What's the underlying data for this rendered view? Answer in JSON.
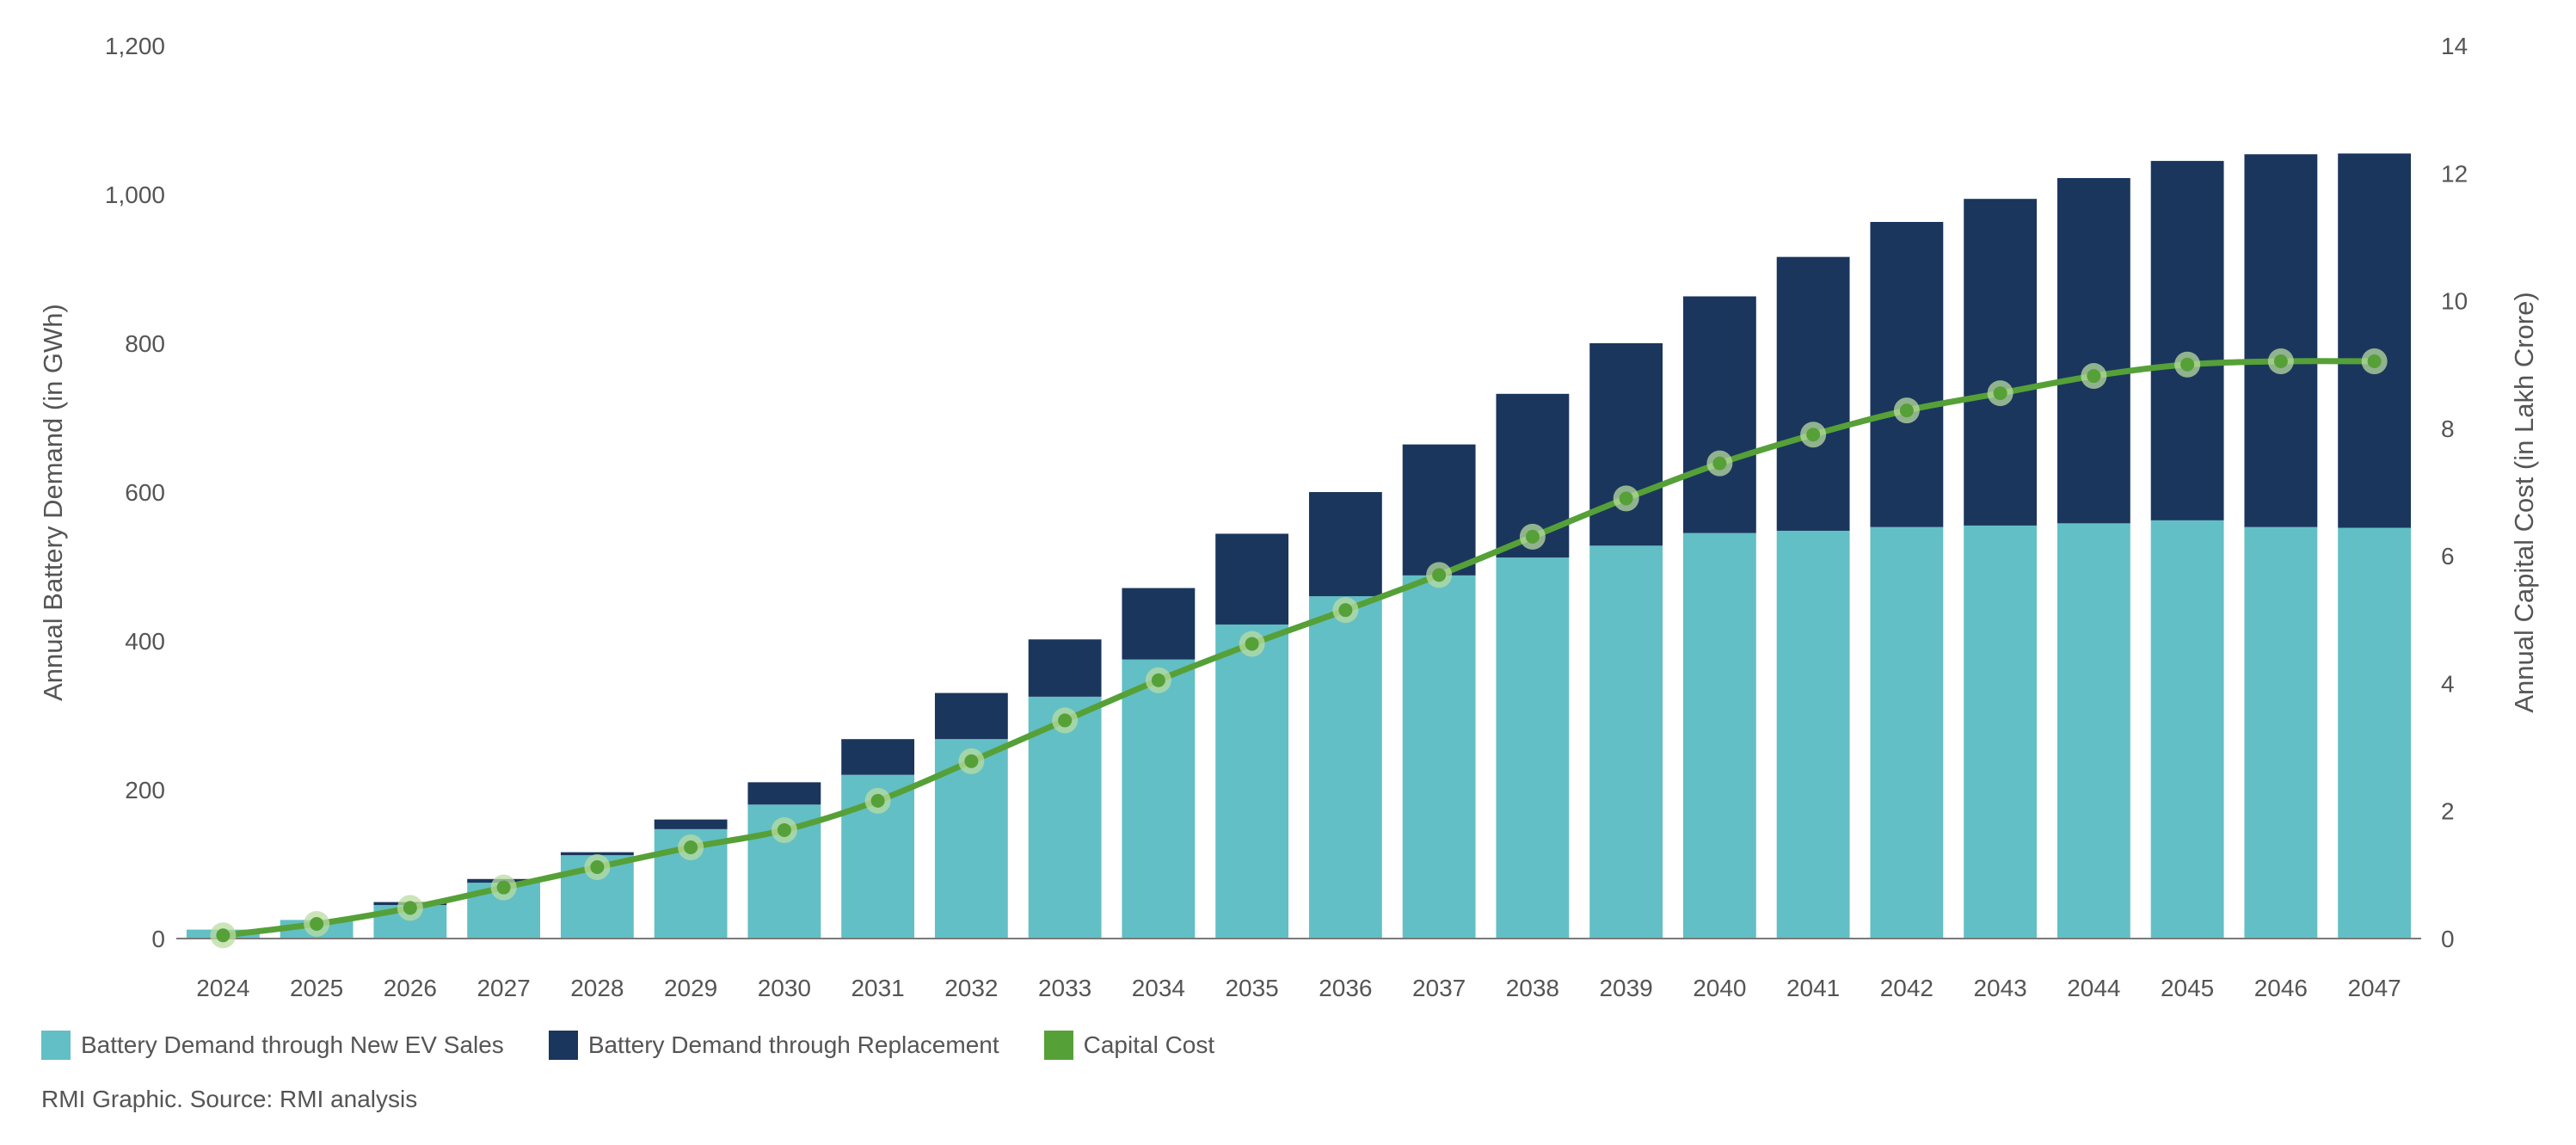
{
  "chart_data": {
    "type": "bar",
    "stacked": true,
    "categories": [
      "2024",
      "2025",
      "2026",
      "2027",
      "2028",
      "2029",
      "2030",
      "2031",
      "2032",
      "2033",
      "2034",
      "2035",
      "2036",
      "2037",
      "2038",
      "2039",
      "2040",
      "2041",
      "2042",
      "2043",
      "2044",
      "2045",
      "2046",
      "2047"
    ],
    "series": [
      {
        "name": "Battery Demand through New EV Sales",
        "color": "#62bfc5",
        "axis": "left",
        "values": [
          12,
          25,
          45,
          75,
          112,
          147,
          180,
          220,
          268,
          325,
          375,
          422,
          460,
          488,
          512,
          528,
          545,
          548,
          553,
          555,
          558,
          562,
          553,
          552
        ]
      },
      {
        "name": "Battery Demand through Replacement",
        "color": "#1b365d",
        "axis": "left",
        "values": [
          0,
          0,
          4,
          5,
          4,
          13,
          30,
          48,
          62,
          77,
          96,
          122,
          140,
          176,
          220,
          272,
          318,
          368,
          410,
          439,
          464,
          483,
          501,
          503
        ]
      },
      {
        "name": "Capital Cost",
        "type": "line",
        "color": "#56a038",
        "axis": "right",
        "values": [
          0.05,
          0.23,
          0.48,
          0.8,
          1.12,
          1.43,
          1.7,
          2.16,
          2.78,
          3.42,
          4.05,
          4.62,
          5.15,
          5.7,
          6.3,
          6.9,
          7.45,
          7.9,
          8.28,
          8.55,
          8.82,
          9.0,
          9.05,
          9.05
        ]
      }
    ],
    "y_left": {
      "label": "Annual Battery Demand (in GWh)",
      "lim": [
        0,
        1200
      ],
      "ticks": [
        "0",
        "200",
        "400",
        "600",
        "800",
        "1,000",
        "1,200"
      ]
    },
    "y_right": {
      "label": "Annual Capital Cost (in Lakh Crore)",
      "lim": [
        0,
        14
      ],
      "ticks": [
        "0",
        "2",
        "4",
        "6",
        "8",
        "10",
        "12",
        "14"
      ]
    },
    "grid": false,
    "legend": "bottom-left"
  },
  "legend": {
    "items": [
      {
        "label": "Battery Demand through New EV Sales",
        "color": "#62bfc5"
      },
      {
        "label": "Battery Demand through Replacement",
        "color": "#1b365d"
      },
      {
        "label": "Capital Cost",
        "color": "#56a038"
      }
    ]
  },
  "source": "RMI Graphic. Source: RMI analysis"
}
